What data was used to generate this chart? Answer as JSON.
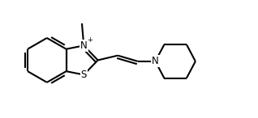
{
  "bg_color": "#ffffff",
  "line_color": "#000000",
  "lw": 1.5,
  "dbo": 0.012,
  "figsize": [
    3.18,
    1.46
  ],
  "dpi": 100,
  "xlim": [
    -0.05,
    1.05
  ],
  "ylim": [
    0.0,
    0.46
  ]
}
